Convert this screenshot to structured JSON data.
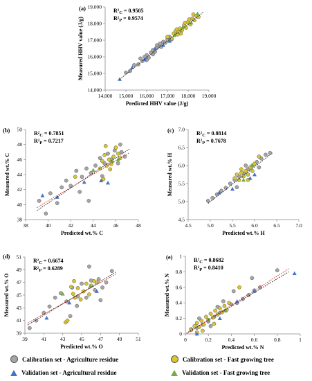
{
  "colors": {
    "cal_agri": "#a6a6a6",
    "cal_fast": "#d9c531",
    "val_agri": "#4472c4",
    "val_fast": "#70ad47",
    "trend_black": "#222222",
    "trend_red": "#d62a2a"
  },
  "legend": [
    {
      "key": "cal_agri",
      "label": "Calibration set - Agriculture residue",
      "marker": "circle"
    },
    {
      "key": "cal_fast",
      "label": "Calibration set - Fast growing tree",
      "marker": "circle"
    },
    {
      "key": "val_agri",
      "label": "Validation set - Agricultural residue",
      "marker": "triangle"
    },
    {
      "key": "val_fast",
      "label": "Validation set - Fast growing tree",
      "marker": "triangle"
    }
  ],
  "chart_data": [
    {
      "type": "scatter",
      "panel": "(a)",
      "xlabel": "Predicted HHV value (J/g)",
      "ylabel": "Measured HHV value (J/g)",
      "xlim": [
        14000,
        19000
      ],
      "ylim": [
        14000,
        19000
      ],
      "xticks": [
        "14,000",
        "15,000",
        "16,000",
        "17,000",
        "18,000",
        "19,000"
      ],
      "yticks": [
        "14,000",
        "15,000",
        "16,000",
        "17,000",
        "18,000",
        "19,000"
      ],
      "r2": [
        "R²C = 0.9505",
        "R²P = 0.9574"
      ],
      "trend": [
        [
          14700,
          14650
        ],
        [
          18750,
          18700
        ]
      ],
      "trend2": null,
      "series": {
        "cal_agri": [
          [
            15000,
            15050
          ],
          [
            15200,
            15150
          ],
          [
            15400,
            15500
          ],
          [
            15600,
            15550
          ],
          [
            15800,
            15750
          ],
          [
            16000,
            16100
          ],
          [
            16100,
            15950
          ],
          [
            16200,
            16250
          ],
          [
            16300,
            16400
          ],
          [
            16400,
            16300
          ],
          [
            16500,
            16550
          ],
          [
            16600,
            16650
          ],
          [
            16700,
            16600
          ],
          [
            16800,
            16900
          ],
          [
            16900,
            16850
          ],
          [
            17000,
            17050
          ],
          [
            16300,
            16150
          ],
          [
            16000,
            15800
          ],
          [
            15700,
            15900
          ],
          [
            16500,
            16700
          ],
          [
            17100,
            17200
          ],
          [
            17200,
            17050
          ],
          [
            16650,
            16800
          ],
          [
            15900,
            16000
          ]
        ],
        "cal_fast": [
          [
            17000,
            17200
          ],
          [
            17200,
            17100
          ],
          [
            17300,
            17400
          ],
          [
            17400,
            17550
          ],
          [
            17500,
            17350
          ],
          [
            17600,
            17700
          ],
          [
            17700,
            17600
          ],
          [
            17800,
            17900
          ],
          [
            17900,
            17750
          ],
          [
            18000,
            18100
          ],
          [
            18100,
            17950
          ],
          [
            18200,
            18300
          ],
          [
            18300,
            18200
          ],
          [
            18400,
            18450
          ],
          [
            18500,
            18400
          ],
          [
            17650,
            17400
          ],
          [
            17850,
            18050
          ],
          [
            18050,
            18250
          ],
          [
            17450,
            17650
          ],
          [
            18250,
            18550
          ],
          [
            17550,
            17500
          ]
        ],
        "val_agri": [
          [
            14700,
            14650
          ],
          [
            15300,
            15350
          ],
          [
            15900,
            15850
          ],
          [
            16400,
            16500
          ],
          [
            16800,
            16700
          ],
          [
            17100,
            16950
          ]
        ],
        "val_fast": [
          [
            17350,
            17300
          ],
          [
            17750,
            17800
          ],
          [
            18150,
            18050
          ],
          [
            18450,
            18600
          ]
        ]
      }
    },
    {
      "type": "scatter",
      "panel": "(b)",
      "xlabel": "Predicted wt.% C",
      "ylabel": "Measured wt.% C",
      "xlim": [
        38,
        48
      ],
      "ylim": [
        38,
        50
      ],
      "xticks": [
        "38",
        "40",
        "42",
        "44",
        "46",
        "48"
      ],
      "yticks": [
        "38",
        "40",
        "42",
        "44",
        "46",
        "48",
        "50"
      ],
      "r2": [
        "R²C = 0.7851",
        "R²P = 0.7217"
      ],
      "trend": [
        [
          39,
          39.2
        ],
        [
          47.2,
          47.4
        ]
      ],
      "trend2": [
        [
          39,
          39.6
        ],
        [
          47.2,
          46.9
        ]
      ],
      "series": {
        "cal_agri": [
          [
            39.2,
            40.5
          ],
          [
            39.8,
            38.8
          ],
          [
            40.2,
            41.5
          ],
          [
            40.8,
            40.2
          ],
          [
            41.2,
            42.3
          ],
          [
            41.6,
            43.2
          ],
          [
            42,
            42.5
          ],
          [
            42.5,
            44.5
          ],
          [
            43,
            43.7
          ],
          [
            43.4,
            44.8
          ],
          [
            43.8,
            44.2
          ],
          [
            44.2,
            45.2
          ],
          [
            44.6,
            46.2
          ],
          [
            45,
            45.5
          ],
          [
            45.3,
            46.8
          ],
          [
            45.6,
            46
          ],
          [
            45.9,
            47.2
          ],
          [
            46.2,
            45.5
          ],
          [
            46.5,
            47
          ],
          [
            46.8,
            46.4
          ],
          [
            43.6,
            40.5
          ],
          [
            44.8,
            43.8
          ],
          [
            42.8,
            41.7
          ],
          [
            46.4,
            48
          ]
        ],
        "cal_fast": [
          [
            44.6,
            44.8
          ],
          [
            44.8,
            45.8
          ],
          [
            45,
            46.6
          ],
          [
            45.2,
            45.2
          ],
          [
            45.4,
            46
          ],
          [
            45.6,
            45.4
          ],
          [
            45.8,
            46.4
          ],
          [
            46,
            47.6
          ],
          [
            46.2,
            46.8
          ],
          [
            45.1,
            47.8
          ],
          [
            44.9,
            43.4
          ],
          [
            42.4,
            43.7
          ],
          [
            45.5,
            44.7
          ],
          [
            46.4,
            46.2
          ]
        ],
        "val_agri": [
          [
            39.5,
            41.2
          ],
          [
            40.8,
            41
          ],
          [
            43.2,
            43
          ],
          [
            44.7,
            43.2
          ],
          [
            45.3,
            42.9
          ]
        ],
        "val_fast": [
          [
            44,
            44.6
          ],
          [
            45.7,
            45.8
          ],
          [
            46.2,
            46
          ]
        ]
      }
    },
    {
      "type": "scatter",
      "panel": "(c)",
      "xlabel": "Predicted wt.% H",
      "ylabel": "Measured wt.% H",
      "xlim": [
        4.5,
        7
      ],
      "ylim": [
        4.5,
        7
      ],
      "xticks": [
        "4.5",
        "5.0",
        "5.5",
        "6.0",
        "6.5",
        "7.0"
      ],
      "yticks": [
        "4.5",
        "5.0",
        "5.5",
        "6.0",
        "6.5",
        "7.0"
      ],
      "r2": [
        "R²C = 0.8814",
        "R²P = 0.7678"
      ],
      "trend": [
        [
          4.95,
          4.95
        ],
        [
          6.4,
          6.35
        ]
      ],
      "trend2": null,
      "series": {
        "cal_agri": [
          [
            4.95,
            5.02
          ],
          [
            5.05,
            5.1
          ],
          [
            5.15,
            5.2
          ],
          [
            5.25,
            5.3
          ],
          [
            5.35,
            5.38
          ],
          [
            5.45,
            5.5
          ],
          [
            5.55,
            5.6
          ],
          [
            5.65,
            5.7
          ],
          [
            5.75,
            5.78
          ],
          [
            5.85,
            5.9
          ],
          [
            5.95,
            6
          ],
          [
            6.05,
            6.1
          ],
          [
            6.15,
            6.2
          ],
          [
            6.25,
            6.3
          ],
          [
            6.35,
            6.35
          ],
          [
            5.6,
            5.4
          ],
          [
            5.8,
            6
          ],
          [
            6.1,
            5.95
          ]
        ],
        "cal_fast": [
          [
            5.55,
            5.65
          ],
          [
            5.6,
            5.75
          ],
          [
            5.65,
            5.6
          ],
          [
            5.7,
            5.8
          ],
          [
            5.75,
            5.7
          ],
          [
            5.8,
            5.85
          ],
          [
            5.85,
            5.75
          ],
          [
            5.9,
            5.95
          ],
          [
            5.95,
            5.85
          ],
          [
            6,
            6.05
          ],
          [
            5.7,
            5.9
          ],
          [
            5.85,
            5.6
          ],
          [
            6.1,
            6.25
          ]
        ],
        "val_agri": [
          [
            5.2,
            5.25
          ],
          [
            5.5,
            5.35
          ],
          [
            5.9,
            5.65
          ],
          [
            6,
            5.75
          ]
        ],
        "val_fast": [
          [
            5.75,
            5.6
          ],
          [
            5.95,
            6
          ]
        ]
      }
    },
    {
      "type": "scatter",
      "panel": "(d)",
      "xlabel": "Predicted wt.% O",
      "ylabel": "Measured wt.% O",
      "xlim": [
        39,
        51
      ],
      "ylim": [
        39,
        51
      ],
      "xticks": [
        "39",
        "41",
        "43",
        "45",
        "47",
        "49",
        "51"
      ],
      "yticks": [
        "39",
        "41",
        "43",
        "45",
        "47",
        "49",
        "51"
      ],
      "r2": [
        "R²C = 0.6674",
        "R²P = 0.6289"
      ],
      "trend": [
        [
          39.3,
          40.3
        ],
        [
          48.6,
          48.6
        ]
      ],
      "trend2": [
        [
          39.3,
          40.6
        ],
        [
          48.6,
          48.3
        ]
      ],
      "series": {
        "cal_agri": [
          [
            39.5,
            39.8
          ],
          [
            40.2,
            41
          ],
          [
            41,
            42.2
          ],
          [
            41.6,
            43.2
          ],
          [
            42.2,
            44.6
          ],
          [
            42.8,
            45.3
          ],
          [
            43.4,
            44
          ],
          [
            44,
            46.2
          ],
          [
            44.5,
            43.3
          ],
          [
            45,
            46.8
          ],
          [
            45.5,
            44.6
          ],
          [
            46,
            47.3
          ],
          [
            46.4,
            45.8
          ],
          [
            46.8,
            47.5
          ],
          [
            47.2,
            46.2
          ],
          [
            47.6,
            47
          ],
          [
            48.2,
            48.8
          ],
          [
            43.8,
            41.7
          ],
          [
            45.8,
            49.5
          ],
          [
            47,
            44.2
          ],
          [
            44.6,
            44.8
          ]
        ],
        "cal_fast": [
          [
            43.9,
            46.3
          ],
          [
            44.1,
            45.2
          ],
          [
            44.3,
            44.6
          ],
          [
            44.6,
            46.1
          ],
          [
            44.9,
            44.3
          ],
          [
            45.2,
            45.6
          ],
          [
            45.5,
            46.8
          ],
          [
            45.8,
            45.1
          ],
          [
            46,
            46.5
          ],
          [
            46.3,
            47.2
          ],
          [
            44.2,
            47.2
          ],
          [
            43.3,
            40.7
          ],
          [
            43.5,
            41
          ],
          [
            46.6,
            47
          ]
        ],
        "val_agri": [
          [
            41.3,
            41.4
          ],
          [
            43.7,
            43.8
          ],
          [
            46.6,
            45.6
          ]
        ],
        "val_fast": [
          [
            43,
            45.2
          ],
          [
            45.9,
            46.4
          ]
        ]
      }
    },
    {
      "type": "scatter",
      "panel": "(e)",
      "xlabel": "Predicted wt.% N",
      "ylabel": "Measured wt.% N",
      "xlim": [
        0,
        1
      ],
      "ylim": [
        0,
        1
      ],
      "xticks": [
        "0",
        "0.2",
        "0.4",
        "0.6",
        "0.8",
        "1"
      ],
      "yticks": [
        "0",
        "0.2",
        "0.4",
        "0.6",
        "0.8",
        "1"
      ],
      "r2": [
        "R²C = 0.8682",
        "R²P = 0.8410"
      ],
      "trend": [
        [
          0.01,
          0.01
        ],
        [
          0.9,
          0.8
        ]
      ],
      "trend2": [
        [
          0.01,
          0.0
        ],
        [
          0.9,
          0.84
        ]
      ],
      "series": {
        "cal_agri": [
          [
            0.05,
            0.06
          ],
          [
            0.1,
            0.08
          ],
          [
            0.15,
            0.12
          ],
          [
            0.2,
            0.16
          ],
          [
            0.25,
            0.22
          ],
          [
            0.3,
            0.27
          ],
          [
            0.35,
            0.3
          ],
          [
            0.4,
            0.38
          ],
          [
            0.45,
            0.4
          ],
          [
            0.5,
            0.45
          ],
          [
            0.55,
            0.5
          ],
          [
            0.6,
            0.56
          ],
          [
            0.65,
            0.6
          ],
          [
            0.8,
            0.82
          ],
          [
            0.12,
            0.2
          ],
          [
            0.33,
            0.42
          ],
          [
            0.42,
            0.55
          ],
          [
            0.22,
            0.1
          ],
          [
            0.58,
            0.72
          ],
          [
            0.28,
            0.35
          ]
        ],
        "cal_fast": [
          [
            0.05,
            0.05
          ],
          [
            0.08,
            0.1
          ],
          [
            0.1,
            0.14
          ],
          [
            0.12,
            0.09
          ],
          [
            0.14,
            0.17
          ],
          [
            0.16,
            0.12
          ],
          [
            0.18,
            0.22
          ],
          [
            0.2,
            0.18
          ],
          [
            0.22,
            0.26
          ],
          [
            0.24,
            0.21
          ],
          [
            0.26,
            0.3
          ],
          [
            0.28,
            0.25
          ],
          [
            0.3,
            0.33
          ],
          [
            0.32,
            0.28
          ],
          [
            0.34,
            0.36
          ],
          [
            0.36,
            0.31
          ],
          [
            0.38,
            0.4
          ],
          [
            0.47,
            0.6
          ],
          [
            0.15,
            0.04
          ],
          [
            0.25,
            0.13
          ],
          [
            0.1,
            0.02
          ]
        ],
        "val_agri": [
          [
            0.1,
            0.0
          ],
          [
            0.3,
            0.2
          ],
          [
            0.45,
            0.42
          ],
          [
            0.6,
            0.55
          ],
          [
            0.95,
            0.78
          ]
        ],
        "val_fast": [
          [
            0.2,
            0.18
          ],
          [
            0.35,
            0.3
          ]
        ]
      }
    }
  ]
}
